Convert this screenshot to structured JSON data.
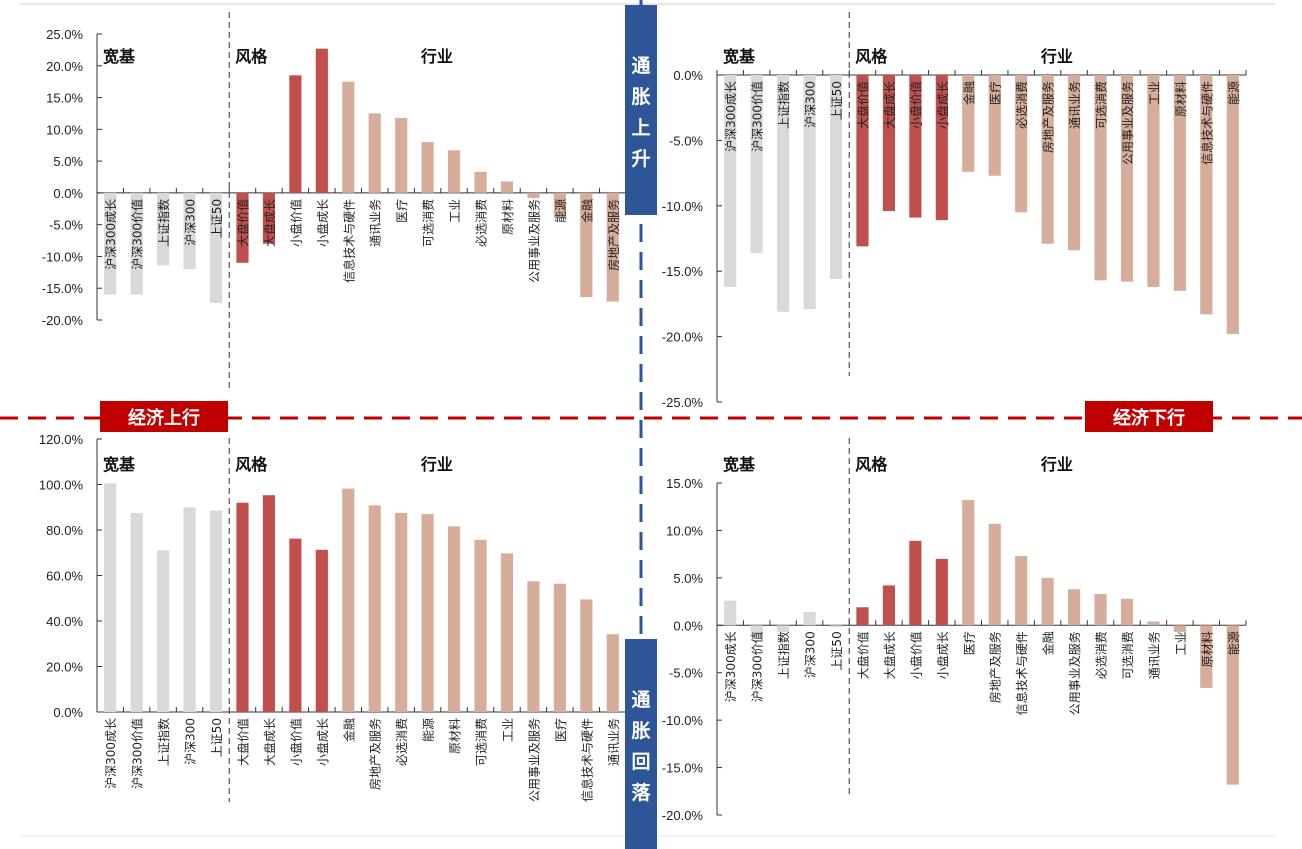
{
  "colors": {
    "broad": "#d9d9d9",
    "style": "#c0504d",
    "industry": "#d6ad9b",
    "red_divider": "#c00000",
    "blue_divider": "#2e5597",
    "axis": "#333333"
  },
  "labels": {
    "econ_up": "经济上行",
    "econ_down": "经济下行",
    "inflation_up": [
      "通",
      "胀",
      "上",
      "升"
    ],
    "inflation_down": [
      "通",
      "胀",
      "回",
      "落"
    ]
  },
  "chart_data": [
    {
      "id": "top-left",
      "type": "bar",
      "quadrant": "经济上行 · 通胀上升",
      "ylim": [
        -20,
        25
      ],
      "yticks": [
        25,
        20,
        15,
        10,
        5,
        0,
        -5,
        -10,
        -15,
        -20
      ],
      "tick_suffix": "%",
      "groups": [
        "宽基",
        "风格",
        "行业"
      ],
      "categories": [
        "沪深300成长",
        "沪深300价值",
        "上证指数",
        "沪深300",
        "上证50",
        "大盘价值",
        "大盘成长",
        "小盘价值",
        "小盘成长",
        "信息技术与硬件",
        "通讯业务",
        "医疗",
        "可选消费",
        "工业",
        "必选消费",
        "原材料",
        "公用事业及服务",
        "能源",
        "金融",
        "房地产及服务"
      ],
      "category_groups": [
        "宽基",
        "宽基",
        "宽基",
        "宽基",
        "宽基",
        "风格",
        "风格",
        "风格",
        "风格",
        "行业",
        "行业",
        "行业",
        "行业",
        "行业",
        "行业",
        "行业",
        "行业",
        "行业",
        "行业",
        "行业"
      ],
      "values": [
        -16.0,
        -16.0,
        -11.4,
        -12.0,
        -17.3,
        -11.0,
        -8.0,
        18.5,
        22.7,
        17.5,
        12.5,
        11.8,
        8.0,
        6.7,
        3.3,
        1.8,
        -0.8,
        -3.9,
        -16.4,
        -17.1
      ]
    },
    {
      "id": "top-right",
      "type": "bar",
      "quadrant": "经济下行 · 通胀上升",
      "ylim": [
        -25,
        0
      ],
      "yticks": [
        0,
        -5,
        -10,
        -15,
        -20,
        -25
      ],
      "tick_suffix": "%",
      "groups": [
        "宽基",
        "风格",
        "行业"
      ],
      "categories": [
        "沪深300成长",
        "沪深300价值",
        "上证指数",
        "沪深300",
        "上证50",
        "大盘价值",
        "大盘成长",
        "小盘价值",
        "小盘成长",
        "金融",
        "医疗",
        "必选消费",
        "房地产及服务",
        "通讯业务",
        "可选消费",
        "公用事业及服务",
        "工业",
        "原材料",
        "信息技术与硬件",
        "能源"
      ],
      "category_groups": [
        "宽基",
        "宽基",
        "宽基",
        "宽基",
        "宽基",
        "风格",
        "风格",
        "风格",
        "风格",
        "行业",
        "行业",
        "行业",
        "行业",
        "行业",
        "行业",
        "行业",
        "行业",
        "行业",
        "行业",
        "行业"
      ],
      "values": [
        -16.2,
        -13.6,
        -18.1,
        -17.9,
        -15.6,
        -13.1,
        -10.4,
        -10.9,
        -11.1,
        -7.4,
        -7.7,
        -10.5,
        -12.9,
        -13.4,
        -15.7,
        -15.8,
        -16.2,
        -16.5,
        -18.3,
        -19.8
      ]
    },
    {
      "id": "bottom-left",
      "type": "bar",
      "quadrant": "经济上行 · 通胀回落",
      "ylim": [
        0,
        120
      ],
      "yticks": [
        120,
        100,
        80,
        60,
        40,
        20,
        0
      ],
      "tick_suffix": "%",
      "groups": [
        "宽基",
        "风格",
        "行业"
      ],
      "categories": [
        "沪深300成长",
        "沪深300价值",
        "上证指数",
        "沪深300",
        "上证50",
        "大盘价值",
        "大盘成长",
        "小盘价值",
        "小盘成长",
        "金融",
        "房地产及服务",
        "必选消费",
        "能源",
        "原材料",
        "可选消费",
        "工业",
        "公用事业及服务",
        "医疗",
        "信息技术与硬件",
        "通讯业务"
      ],
      "category_groups": [
        "宽基",
        "宽基",
        "宽基",
        "宽基",
        "宽基",
        "风格",
        "风格",
        "风格",
        "风格",
        "行业",
        "行业",
        "行业",
        "行业",
        "行业",
        "行业",
        "行业",
        "行业",
        "行业",
        "行业",
        "行业"
      ],
      "values": [
        100.5,
        87.5,
        71.0,
        90.0,
        88.5,
        92.0,
        95.3,
        76.2,
        71.3,
        98.2,
        90.8,
        87.5,
        87.0,
        81.6,
        75.7,
        69.7,
        57.5,
        56.4,
        49.5,
        34.2
      ]
    },
    {
      "id": "bottom-right",
      "type": "bar",
      "quadrant": "经济下行 · 通胀回落",
      "ylim": [
        -20,
        15
      ],
      "yticks": [
        15,
        10,
        5,
        0,
        -5,
        -10,
        -15,
        -20
      ],
      "tick_suffix": "%",
      "groups": [
        "宽基",
        "风格",
        "行业"
      ],
      "categories": [
        "沪深300成长",
        "沪深300价值",
        "上证指数",
        "沪深300",
        "上证50",
        "大盘价值",
        "大盘成长",
        "小盘价值",
        "小盘成长",
        "医疗",
        "房地产及服务",
        "信息技术与硬件",
        "金融",
        "公用事业及服务",
        "必选消费",
        "可选消费",
        "通讯业务",
        "工业",
        "原材料",
        "能源"
      ],
      "category_groups": [
        "宽基",
        "宽基",
        "宽基",
        "宽基",
        "宽基",
        "风格",
        "风格",
        "风格",
        "风格",
        "行业",
        "行业",
        "行业",
        "行业",
        "行业",
        "行业",
        "行业",
        "行业",
        "行业",
        "行业",
        "行业"
      ],
      "values": [
        2.6,
        -1.2,
        -0.7,
        1.4,
        -0.2,
        1.9,
        4.2,
        8.9,
        7.0,
        13.2,
        10.7,
        7.3,
        5.0,
        3.8,
        3.3,
        2.8,
        0.4,
        -0.7,
        -6.6,
        -16.8
      ]
    }
  ]
}
